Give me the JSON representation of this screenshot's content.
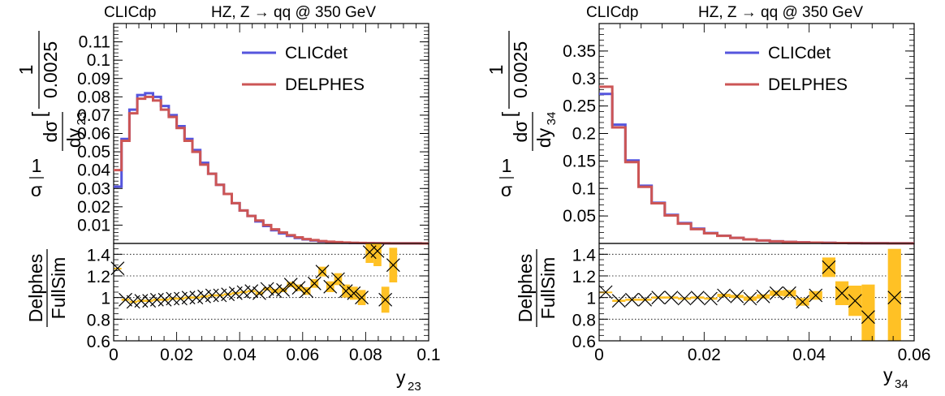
{
  "chart_data": [
    {
      "type": "line",
      "panel": "left",
      "header_left": "CLICdp",
      "header_right": "HZ, Z → qq  @ 350 GeV",
      "legend": {
        "placement": "top-right"
      },
      "xlabel": "y",
      "xlabel_sub": "23",
      "ylabel_main": {
        "num": "1",
        "den": "σ",
        "dnum": "dσ",
        "dden": "dy",
        "dden_sub": "23",
        "bnum": "1",
        "bden": "0.0025"
      },
      "ratio_ylabel": {
        "num": "Delphes",
        "den": "FullSim"
      },
      "xlim": [
        0,
        0.1
      ],
      "ylim": [
        0,
        0.12
      ],
      "ratio_ylim": [
        0.6,
        1.5
      ],
      "xticks": [
        0,
        0.02,
        0.04,
        0.06,
        0.08,
        0.1
      ],
      "xtick_labels": [
        "0",
        "0.02",
        "0.04",
        "0.06",
        "0.08",
        "0.1"
      ],
      "yticks": [
        0.01,
        0.02,
        0.03,
        0.04,
        0.05,
        0.06,
        0.07,
        0.08,
        0.09,
        0.1,
        0.11
      ],
      "ytick_labels": [
        "0.01",
        "0.02",
        "0.03",
        "0.04",
        "0.05",
        "0.06",
        "0.07",
        "0.08",
        "0.09",
        "0.1",
        "0.11"
      ],
      "ratio_yticks": [
        0.6,
        0.8,
        1,
        1.2,
        1.4
      ],
      "ratio_ytick_labels": [
        "0.6",
        "0.8",
        "1",
        "1.2",
        "1.4"
      ],
      "ratio_gridlines": [
        0.8,
        1.0,
        1.2,
        1.4
      ],
      "bin_edges": [
        0,
        0.0025,
        0.005,
        0.0075,
        0.01,
        0.0125,
        0.015,
        0.0175,
        0.02,
        0.0225,
        0.025,
        0.0275,
        0.03,
        0.0325,
        0.035,
        0.0375,
        0.04,
        0.0425,
        0.045,
        0.0475,
        0.05,
        0.0525,
        0.055,
        0.0575,
        0.06,
        0.0625,
        0.065,
        0.0675,
        0.07,
        0.0725,
        0.075,
        0.0775,
        0.08,
        0.0825,
        0.085,
        0.0875,
        0.09,
        0.0925,
        0.095,
        0.0975,
        0.1
      ],
      "series": [
        {
          "name": "CLICdet",
          "color": "#5555dd",
          "values": [
            0.031,
            0.057,
            0.073,
            0.081,
            0.082,
            0.08,
            0.075,
            0.07,
            0.064,
            0.057,
            0.051,
            0.044,
            0.038,
            0.032,
            0.027,
            0.022,
            0.018,
            0.015,
            0.012,
            0.0095,
            0.0072,
            0.0055,
            0.0041,
            0.003,
            0.0022,
            0.0016,
            0.0011,
            0.0008,
            0.00055,
            0.0004,
            0.00028,
            0.0002,
            0.00014,
            0.0001,
            8e-05,
            6e-05,
            5e-05,
            4e-05,
            3e-05,
            2e-05
          ]
        },
        {
          "name": "DELPHES",
          "color": "#cc5555",
          "values": [
            0.04,
            0.056,
            0.071,
            0.079,
            0.08,
            0.078,
            0.073,
            0.069,
            0.063,
            0.056,
            0.05,
            0.043,
            0.038,
            0.032,
            0.027,
            0.022,
            0.018,
            0.015,
            0.0125,
            0.01,
            0.0077,
            0.006,
            0.0045,
            0.0033,
            0.0024,
            0.0018,
            0.0013,
            0.00095,
            0.0007,
            0.0005,
            0.00035,
            0.00025,
            0.00017,
            0.00012,
            9e-05,
            7e-05,
            5e-05,
            4e-05,
            3e-05,
            2e-05
          ]
        }
      ],
      "ratio": {
        "bin_centers": [
          0.00125,
          0.00375,
          0.00625,
          0.00875,
          0.01125,
          0.01375,
          0.01625,
          0.01875,
          0.02125,
          0.02375,
          0.02625,
          0.02875,
          0.03125,
          0.03375,
          0.03625,
          0.03875,
          0.04125,
          0.04375,
          0.04625,
          0.04875,
          0.05125,
          0.05375,
          0.05625,
          0.05875,
          0.06125,
          0.06375,
          0.06625,
          0.06875,
          0.07125,
          0.07375,
          0.07625,
          0.07875,
          0.08125,
          0.08375,
          0.08625,
          0.08875
        ],
        "values": [
          1.27,
          0.98,
          0.96,
          0.97,
          0.97,
          0.98,
          0.98,
          0.99,
          0.99,
          1.0,
          1.0,
          1.01,
          1.02,
          1.02,
          1.03,
          1.04,
          1.05,
          1.06,
          1.04,
          1.08,
          1.06,
          1.07,
          1.12,
          1.09,
          1.06,
          1.13,
          1.24,
          1.1,
          1.17,
          1.06,
          1.04,
          1.0,
          1.42,
          1.43,
          0.98,
          1.3
        ],
        "errors": [
          0.005,
          0.01,
          0.01,
          0.01,
          0.01,
          0.01,
          0.01,
          0.01,
          0.01,
          0.01,
          0.01,
          0.01,
          0.01,
          0.01,
          0.01,
          0.01,
          0.01,
          0.01,
          0.015,
          0.015,
          0.02,
          0.02,
          0.025,
          0.03,
          0.035,
          0.04,
          0.045,
          0.05,
          0.055,
          0.06,
          0.06,
          0.07,
          0.1,
          0.14,
          0.12,
          0.16
        ]
      }
    },
    {
      "type": "line",
      "panel": "right",
      "header_left": "CLICdp",
      "header_right": "HZ, Z → qq  @ 350 GeV",
      "legend": {
        "placement": "top-right"
      },
      "xlabel": "y",
      "xlabel_sub": "34",
      "ylabel_main": {
        "num": "1",
        "den": "σ",
        "dnum": "dσ",
        "dden": "dy",
        "dden_sub": "34",
        "bnum": "1",
        "bden": "0.0025"
      },
      "ratio_ylabel": {
        "num": "Delphes",
        "den": "FullSim"
      },
      "xlim": [
        0,
        0.06
      ],
      "ylim": [
        0,
        0.4
      ],
      "ratio_ylim": [
        0.6,
        1.5
      ],
      "xticks": [
        0,
        0.02,
        0.04,
        0.06
      ],
      "xtick_labels": [
        "0",
        "0.02",
        "0.04",
        "0.06"
      ],
      "yticks": [
        0.05,
        0.1,
        0.15,
        0.2,
        0.25,
        0.3,
        0.35
      ],
      "ytick_labels": [
        "0.05",
        "0.1",
        "0.15",
        "0.2",
        "0.25",
        "0.3",
        "0.35"
      ],
      "ratio_yticks": [
        0.6,
        0.8,
        1,
        1.2,
        1.4
      ],
      "ratio_ytick_labels": [
        "0.6",
        "0.8",
        "1",
        "1.2",
        "1.4"
      ],
      "ratio_gridlines": [
        0.8,
        1.0,
        1.2,
        1.4
      ],
      "bin_edges": [
        0,
        0.0025,
        0.005,
        0.0075,
        0.01,
        0.0125,
        0.015,
        0.0175,
        0.02,
        0.0225,
        0.025,
        0.0275,
        0.03,
        0.0325,
        0.035,
        0.0375,
        0.04,
        0.0425,
        0.045,
        0.0475,
        0.05,
        0.0525,
        0.055,
        0.0575,
        0.06
      ],
      "series": [
        {
          "name": "CLICdet",
          "color": "#5555dd",
          "values": [
            0.272,
            0.216,
            0.151,
            0.105,
            0.074,
            0.052,
            0.037,
            0.027,
            0.019,
            0.014,
            0.0102,
            0.0074,
            0.0054,
            0.0039,
            0.0028,
            0.002,
            0.0015,
            0.0011,
            0.0008,
            0.0006,
            0.00045,
            0.00033,
            0.00024,
            0.00018
          ]
        },
        {
          "name": "DELPHES",
          "color": "#cc5555",
          "values": [
            0.285,
            0.211,
            0.148,
            0.103,
            0.073,
            0.051,
            0.036,
            0.026,
            0.0185,
            0.0138,
            0.0101,
            0.0073,
            0.0054,
            0.0038,
            0.0028,
            0.002,
            0.0015,
            0.0011,
            0.0008,
            0.0006,
            0.00045,
            0.00033,
            0.00024,
            0.00018
          ]
        }
      ],
      "ratio": {
        "bin_centers": [
          0.00125,
          0.00375,
          0.00625,
          0.00875,
          0.01125,
          0.01375,
          0.01625,
          0.01875,
          0.02125,
          0.02375,
          0.02625,
          0.02875,
          0.03125,
          0.03375,
          0.03625,
          0.03875,
          0.04125,
          0.04375,
          0.04625,
          0.04875,
          0.05125,
          0.05625
        ],
        "values": [
          1.05,
          0.97,
          0.98,
          0.98,
          1.0,
          1.0,
          0.99,
          1.0,
          0.99,
          1.02,
          1.01,
          0.99,
          1.01,
          1.04,
          1.04,
          0.96,
          1.02,
          1.28,
          1.04,
          0.97,
          0.82,
          1.0
        ],
        "errors": [
          0.005,
          0.01,
          0.01,
          0.01,
          0.01,
          0.01,
          0.01,
          0.01,
          0.01,
          0.015,
          0.015,
          0.02,
          0.02,
          0.025,
          0.03,
          0.035,
          0.04,
          0.09,
          0.11,
          0.14,
          0.3,
          0.45
        ]
      }
    }
  ]
}
